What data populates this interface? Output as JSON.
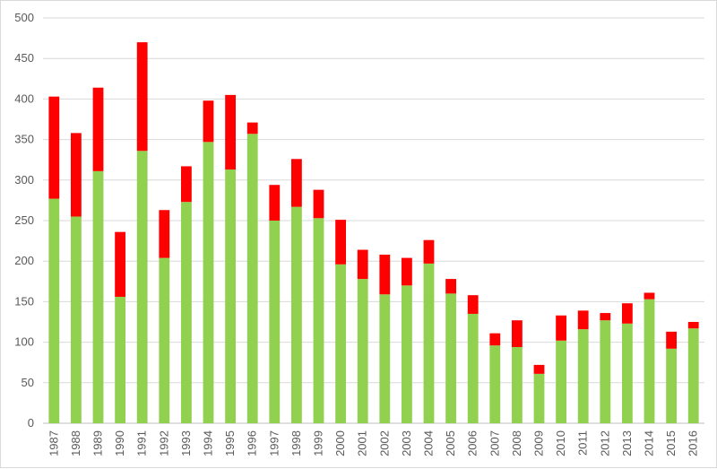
{
  "chart_data": {
    "type": "bar",
    "stacked": true,
    "categories": [
      "1987",
      "1988",
      "1989",
      "1990",
      "1991",
      "1992",
      "1993",
      "1994",
      "1995",
      "1996",
      "1997",
      "1998",
      "1999",
      "2000",
      "2001",
      "2002",
      "2003",
      "2004",
      "2005",
      "2006",
      "2007",
      "2008",
      "2009",
      "2010",
      "2011",
      "2012",
      "2013",
      "2014",
      "2015",
      "2016"
    ],
    "series": [
      {
        "color": "#92d050",
        "values": [
          277,
          255,
          311,
          156,
          336,
          204,
          273,
          347,
          313,
          357,
          250,
          267,
          253,
          196,
          178,
          159,
          170,
          197,
          160,
          135,
          96,
          94,
          61,
          102,
          116,
          127,
          123,
          153,
          92,
          117
        ]
      },
      {
        "color": "#ff0000",
        "values": [
          126,
          103,
          103,
          80,
          134,
          59,
          44,
          51,
          92,
          14,
          44,
          59,
          35,
          55,
          36,
          49,
          34,
          29,
          18,
          23,
          15,
          33,
          11,
          31,
          23,
          9,
          25,
          8,
          21,
          8
        ]
      }
    ],
    "ylim": [
      0,
      500
    ],
    "yticks": [
      "0",
      "50",
      "100",
      "150",
      "200",
      "250",
      "300",
      "350",
      "400",
      "450",
      "500"
    ],
    "grid": true,
    "legend": "none",
    "title": "",
    "xlabel": "",
    "ylabel": ""
  }
}
